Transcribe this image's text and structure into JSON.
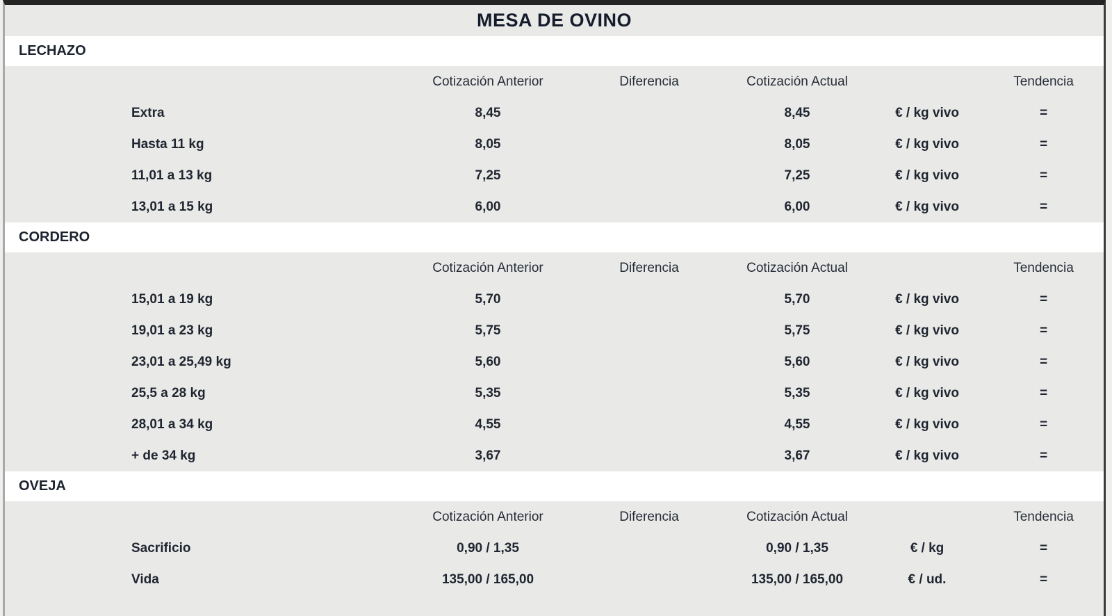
{
  "title": "MESA DE OVINO",
  "columns": {
    "anterior": "Cotización Anterior",
    "diferencia": "Diferencia",
    "actual": "Cotización Actual",
    "unit": "",
    "tendencia": "Tendencia"
  },
  "colors": {
    "panel_gray": "#e9e9e7",
    "band_white": "#ffffff",
    "text_dark": "#1f2530",
    "border_dark": "#2a2a2a"
  },
  "sections": [
    {
      "name": "LECHAZO",
      "rows": [
        {
          "label": "Extra",
          "anterior": "8,45",
          "diferencia": "",
          "actual": "8,45",
          "unit": "€ / kg vivo",
          "tendencia": "="
        },
        {
          "label": "Hasta 11 kg",
          "anterior": "8,05",
          "diferencia": "",
          "actual": "8,05",
          "unit": "€ / kg vivo",
          "tendencia": "="
        },
        {
          "label": "11,01 a 13 kg",
          "anterior": "7,25",
          "diferencia": "",
          "actual": "7,25",
          "unit": "€ / kg vivo",
          "tendencia": "="
        },
        {
          "label": "13,01 a 15 kg",
          "anterior": "6,00",
          "diferencia": "",
          "actual": "6,00",
          "unit": "€ / kg vivo",
          "tendencia": "="
        }
      ]
    },
    {
      "name": "CORDERO",
      "rows": [
        {
          "label": "15,01 a 19 kg",
          "anterior": "5,70",
          "diferencia": "",
          "actual": "5,70",
          "unit": "€ / kg vivo",
          "tendencia": "="
        },
        {
          "label": "19,01 a 23 kg",
          "anterior": "5,75",
          "diferencia": "",
          "actual": "5,75",
          "unit": "€ / kg vivo",
          "tendencia": "="
        },
        {
          "label": "23,01 a 25,49 kg",
          "anterior": "5,60",
          "diferencia": "",
          "actual": "5,60",
          "unit": "€ / kg vivo",
          "tendencia": "="
        },
        {
          "label": "25,5 a 28 kg",
          "anterior": "5,35",
          "diferencia": "",
          "actual": "5,35",
          "unit": "€ / kg vivo",
          "tendencia": "="
        },
        {
          "label": "28,01 a 34 kg",
          "anterior": "4,55",
          "diferencia": "",
          "actual": "4,55",
          "unit": "€ / kg vivo",
          "tendencia": "="
        },
        {
          "label": "+ de 34 kg",
          "anterior": "3,67",
          "diferencia": "",
          "actual": "3,67",
          "unit": "€ / kg vivo",
          "tendencia": "="
        }
      ]
    },
    {
      "name": "OVEJA",
      "rows": [
        {
          "label": "Sacrificio",
          "anterior": "0,90 / 1,35",
          "diferencia": "",
          "actual": "0,90 / 1,35",
          "unit": "€ / kg",
          "tendencia": "="
        },
        {
          "label": "Vida",
          "anterior": "135,00 / 165,00",
          "diferencia": "",
          "actual": "135,00 / 165,00",
          "unit": "€ / ud.",
          "tendencia": "="
        }
      ]
    }
  ]
}
